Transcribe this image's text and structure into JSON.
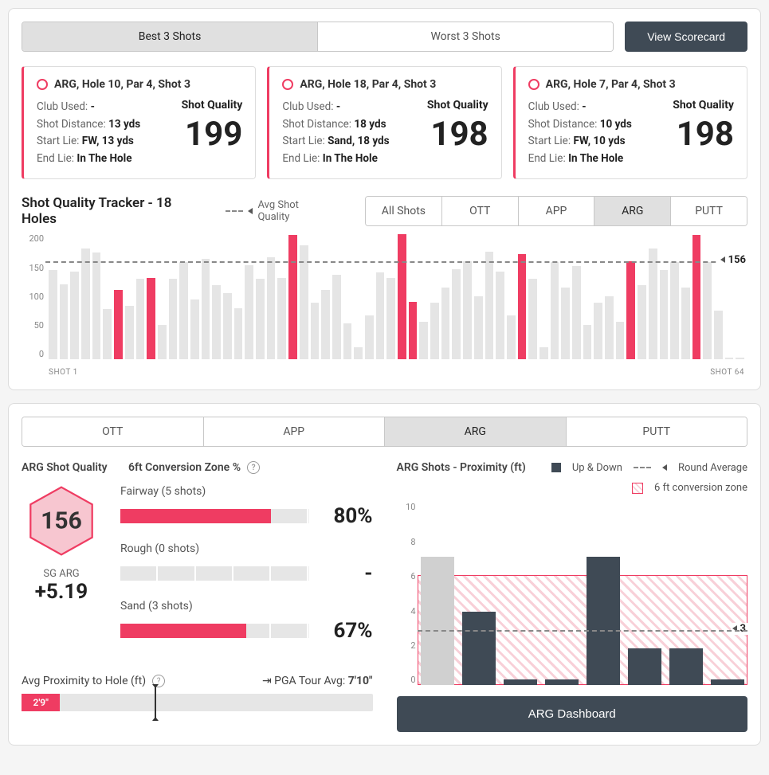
{
  "colors": {
    "accent": "#ef3c62",
    "dark": "#3f4a55",
    "barLight": "#e5e5e5"
  },
  "top": {
    "tabs": [
      "Best 3 Shots",
      "Worst 3 Shots"
    ],
    "activeTab": 0,
    "scorecardBtn": "View Scorecard"
  },
  "shots": [
    {
      "title": "ARG, Hole 10, Par 4, Shot 3",
      "clubLbl": "Club Used:",
      "club": "-",
      "distLbl": "Shot Distance:",
      "dist": "13 yds",
      "startLbl": "Start Lie:",
      "start": "FW, 13 yds",
      "endLbl": "End Lie:",
      "end": "In The Hole",
      "qLbl": "Shot Quality",
      "q": "199"
    },
    {
      "title": "ARG, Hole 18, Par 4, Shot 3",
      "clubLbl": "Club Used:",
      "club": "-",
      "distLbl": "Shot Distance:",
      "dist": "18 yds",
      "startLbl": "Start Lie:",
      "start": "Sand, 18 yds",
      "endLbl": "End Lie:",
      "end": "In The Hole",
      "qLbl": "Shot Quality",
      "q": "198"
    },
    {
      "title": "ARG, Hole 7, Par 4, Shot 3",
      "clubLbl": "Club Used:",
      "club": "-",
      "distLbl": "Shot Distance:",
      "dist": "10 yds",
      "startLbl": "Start Lie:",
      "start": "FW, 10 yds",
      "endLbl": "End Lie:",
      "end": "In The Hole",
      "qLbl": "Shot Quality",
      "q": "198"
    }
  ],
  "tracker": {
    "title": "Shot Quality Tracker - 18 Holes",
    "avgLabel": "Avg Shot Quality",
    "filters": [
      "All Shots",
      "OTT",
      "APP",
      "ARG",
      "PUTT"
    ],
    "activeFilter": 3,
    "yTicks": [
      "200",
      "150",
      "100",
      "50",
      "0"
    ],
    "yMax": 200,
    "avg": 156,
    "xStart": "SHOT 1",
    "xEnd": "SHOT 64",
    "bars": [
      {
        "v": 142,
        "h": 0
      },
      {
        "v": 120,
        "h": 0
      },
      {
        "v": 140,
        "h": 0
      },
      {
        "v": 176,
        "h": 0
      },
      {
        "v": 170,
        "h": 0
      },
      {
        "v": 80,
        "h": 0
      },
      {
        "v": 110,
        "h": 1
      },
      {
        "v": 85,
        "h": 0
      },
      {
        "v": 128,
        "h": 0
      },
      {
        "v": 130,
        "h": 1
      },
      {
        "v": 55,
        "h": 0
      },
      {
        "v": 128,
        "h": 0
      },
      {
        "v": 155,
        "h": 0
      },
      {
        "v": 95,
        "h": 0
      },
      {
        "v": 160,
        "h": 0
      },
      {
        "v": 118,
        "h": 0
      },
      {
        "v": 105,
        "h": 0
      },
      {
        "v": 82,
        "h": 0
      },
      {
        "v": 150,
        "h": 0
      },
      {
        "v": 128,
        "h": 0
      },
      {
        "v": 162,
        "h": 0
      },
      {
        "v": 130,
        "h": 0
      },
      {
        "v": 198,
        "h": 1
      },
      {
        "v": 182,
        "h": 0
      },
      {
        "v": 90,
        "h": 0
      },
      {
        "v": 110,
        "h": 0
      },
      {
        "v": 135,
        "h": 0
      },
      {
        "v": 58,
        "h": 0
      },
      {
        "v": 20,
        "h": 0
      },
      {
        "v": 70,
        "h": 0
      },
      {
        "v": 138,
        "h": 0
      },
      {
        "v": 130,
        "h": 0
      },
      {
        "v": 199,
        "h": 1
      },
      {
        "v": 92,
        "h": 1
      },
      {
        "v": 60,
        "h": 0
      },
      {
        "v": 90,
        "h": 0
      },
      {
        "v": 115,
        "h": 0
      },
      {
        "v": 144,
        "h": 0
      },
      {
        "v": 156,
        "h": 0
      },
      {
        "v": 100,
        "h": 0
      },
      {
        "v": 172,
        "h": 0
      },
      {
        "v": 140,
        "h": 0
      },
      {
        "v": 70,
        "h": 0
      },
      {
        "v": 168,
        "h": 1
      },
      {
        "v": 128,
        "h": 0
      },
      {
        "v": 20,
        "h": 0
      },
      {
        "v": 155,
        "h": 0
      },
      {
        "v": 115,
        "h": 0
      },
      {
        "v": 148,
        "h": 0
      },
      {
        "v": 55,
        "h": 0
      },
      {
        "v": 90,
        "h": 0
      },
      {
        "v": 100,
        "h": 0
      },
      {
        "v": 60,
        "h": 0
      },
      {
        "v": 156,
        "h": 1
      },
      {
        "v": 118,
        "h": 0
      },
      {
        "v": 176,
        "h": 0
      },
      {
        "v": 142,
        "h": 0
      },
      {
        "v": 155,
        "h": 0
      },
      {
        "v": 115,
        "h": 0
      },
      {
        "v": 198,
        "h": 1
      },
      {
        "v": 155,
        "h": 0
      },
      {
        "v": 78,
        "h": 0
      },
      {
        "v": 3,
        "h": 0
      },
      {
        "v": 3,
        "h": 0
      }
    ]
  },
  "bottomTabs": {
    "tabs": [
      "OTT",
      "APP",
      "ARG",
      "PUTT"
    ],
    "active": 2
  },
  "argQuality": {
    "title": "ARG Shot Quality",
    "hexVal": "156",
    "sgLbl": "SG ARG",
    "sgVal": "+5.19"
  },
  "conv": {
    "title": "6ft Conversion Zone %",
    "rows": [
      {
        "lbl": "Fairway (5 shots)",
        "pct": "80%",
        "fill": 80
      },
      {
        "lbl": "Rough (0 shots)",
        "pct": "-",
        "fill": 0
      },
      {
        "lbl": "Sand (3 shots)",
        "pct": "67%",
        "fill": 67
      }
    ]
  },
  "proxBar": {
    "title": "Avg Proximity to Hole (ft)",
    "pgaLbl": "PGA Tour Avg:",
    "pgaVal": "7'10\"",
    "val": "2'9\"",
    "fillPct": 11,
    "markPct": 38
  },
  "proximity": {
    "title": "ARG Shots - Proximity (ft)",
    "legendUpDown": "Up & Down",
    "legendRoundAvg": "Round Average",
    "legendConv": "6 ft conversion zone",
    "yTicks": [
      "10",
      "8",
      "6",
      "4",
      "2",
      "0"
    ],
    "yMax": 10,
    "convTop": 6,
    "roundAvg": 3,
    "bars": [
      {
        "v": 7,
        "gray": true
      },
      {
        "v": 4,
        "gray": false
      },
      {
        "v": 0.3,
        "gray": false
      },
      {
        "v": 0.3,
        "gray": false
      },
      {
        "v": 7,
        "gray": false
      },
      {
        "v": 2,
        "gray": false
      },
      {
        "v": 2,
        "gray": false
      },
      {
        "v": 0.3,
        "gray": false
      }
    ],
    "dashBtn": "ARG Dashboard"
  }
}
